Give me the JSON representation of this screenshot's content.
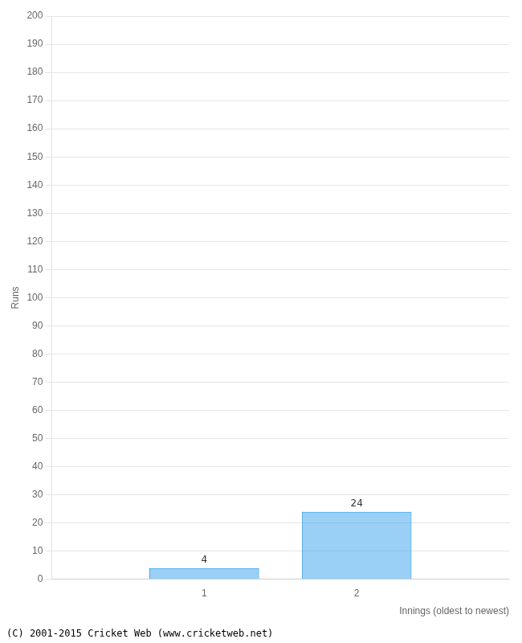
{
  "chart_data": {
    "type": "bar",
    "xlabel": "Innings (oldest to newest)",
    "ylabel": "Runs",
    "x": [
      1,
      2
    ],
    "values": [
      4,
      24
    ],
    "xlim": [
      0.0,
      3.0
    ],
    "xticks": [
      {
        "value": 1,
        "label": "1"
      },
      {
        "value": 2,
        "label": "2"
      }
    ],
    "ylim": [
      0,
      200
    ],
    "yticks": [
      0,
      10,
      20,
      30,
      40,
      50,
      60,
      70,
      80,
      90,
      100,
      110,
      120,
      130,
      140,
      150,
      160,
      170,
      180,
      190,
      200
    ],
    "grid": true,
    "data_labels": true,
    "annotations": [
      "(C) 2001-2015 Cricket Web (www.cricketweb.net)"
    ]
  }
}
